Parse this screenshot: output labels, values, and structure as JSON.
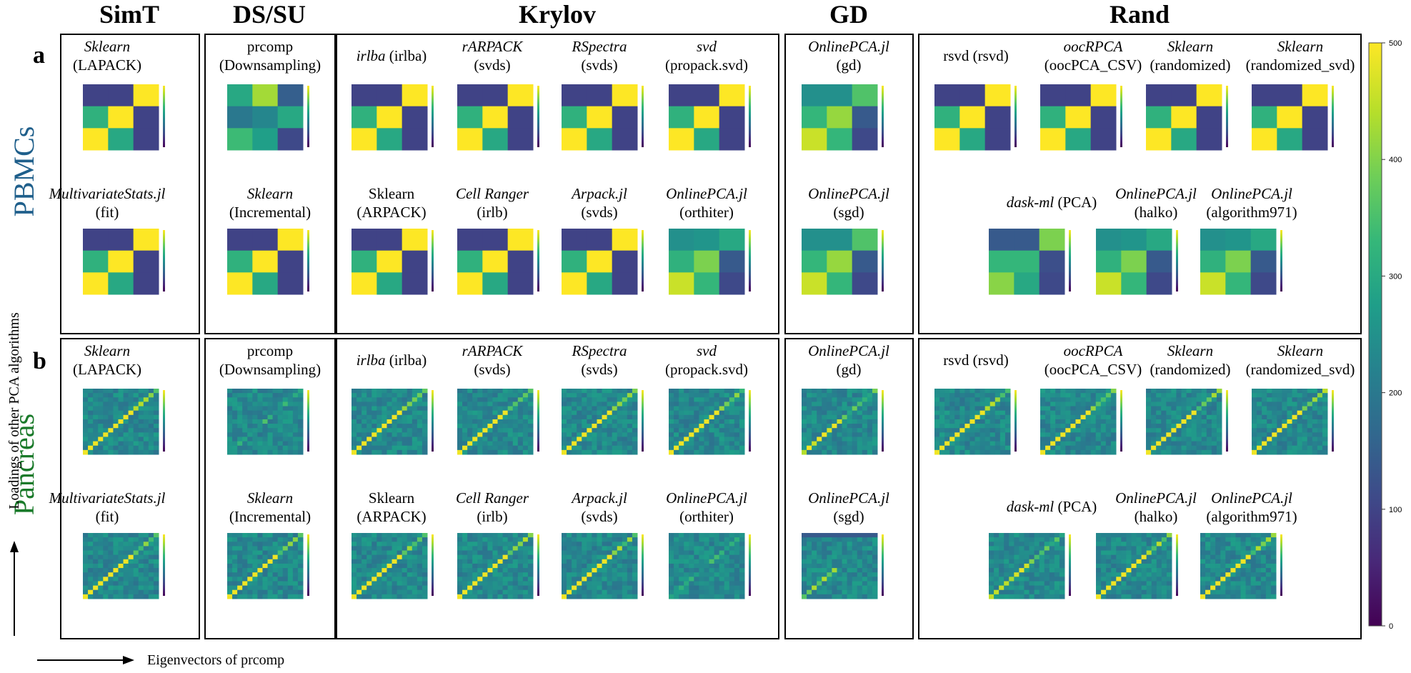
{
  "palette": {
    "viridis": [
      "#440154",
      "#482878",
      "#3e4a89",
      "#31688e",
      "#26828e",
      "#1f9e89",
      "#35b779",
      "#6ece58",
      "#b5de2b",
      "#fde725"
    ],
    "pbmcs_color": "#1f5f8b",
    "pancreas_color": "#1a7a2a"
  },
  "groups": [
    {
      "id": "simt",
      "title": "SimT"
    },
    {
      "id": "dssu",
      "title": "DS/SU"
    },
    {
      "id": "krylov",
      "title": "Krylov"
    },
    {
      "id": "gd",
      "title": "GD"
    },
    {
      "id": "rand",
      "title": "Rand"
    }
  ],
  "rows": [
    {
      "id": "a",
      "letter": "a",
      "dataset": "PBMCs"
    },
    {
      "id": "b",
      "letter": "b",
      "dataset": "Pancreas"
    }
  ],
  "axes": {
    "y_label": "Loadings of other PCA algorithms",
    "x_label": "Eigenvectors of prcomp"
  },
  "colorbar": {
    "ticks": [
      "0",
      "100",
      "200",
      "300",
      "400",
      "500"
    ],
    "range": [
      0,
      500
    ],
    "colormap": "viridis"
  },
  "algorithms": [
    {
      "group": "simt",
      "top": {
        "text": "Sklearn",
        "italic": true
      },
      "bottom": "(LAPACK)"
    },
    {
      "group": "simt",
      "top": {
        "text": "MultivariateStats.jl",
        "italic": true
      },
      "bottom": "(fit)"
    },
    {
      "group": "dssu",
      "top": {
        "text": "prcomp",
        "italic": false
      },
      "bottom": "(Downsampling)"
    },
    {
      "group": "dssu",
      "top": {
        "text": "Sklearn",
        "italic": true
      },
      "bottom": "(Incremental)"
    },
    {
      "group": "krylov",
      "inline": true,
      "top": {
        "text": "irlba",
        "italic": true
      },
      "bottom": " (irlba)"
    },
    {
      "group": "krylov",
      "top": {
        "text": "rARPACK",
        "italic": true
      },
      "bottom": "(svds)"
    },
    {
      "group": "krylov",
      "top": {
        "text": "RSpectra",
        "italic": true
      },
      "bottom": "(svds)"
    },
    {
      "group": "krylov",
      "top": {
        "text": "svd",
        "italic": true
      },
      "bottom": "(propack.svd)"
    },
    {
      "group": "krylov",
      "top": {
        "text": "Sklearn",
        "italic": false
      },
      "bottom": "(ARPACK)"
    },
    {
      "group": "krylov",
      "top": {
        "text": "Cell Ranger",
        "italic": true
      },
      "bottom": "(irlb)"
    },
    {
      "group": "krylov",
      "top": {
        "text": "Arpack.jl",
        "italic": true
      },
      "bottom": "(svds)"
    },
    {
      "group": "krylov",
      "top": {
        "text": "OnlinePCA.jl",
        "italic": true
      },
      "bottom": "(orthiter)"
    },
    {
      "group": "gd",
      "top": {
        "text": "OnlinePCA.jl",
        "italic": true
      },
      "bottom": "(gd)"
    },
    {
      "group": "gd",
      "top": {
        "text": "OnlinePCA.jl",
        "italic": true
      },
      "bottom": "(sgd)"
    },
    {
      "group": "rand",
      "inline": true,
      "top": {
        "text": "rsvd",
        "italic": false
      },
      "bottom": " (rsvd)"
    },
    {
      "group": "rand",
      "top": {
        "text": "oocRPCA",
        "italic": true
      },
      "bottom": "(oocPCA_CSV)"
    },
    {
      "group": "rand",
      "top": {
        "text": "Sklearn",
        "italic": true
      },
      "bottom": "(randomized)"
    },
    {
      "group": "rand",
      "top": {
        "text": "Sklearn",
        "italic": true
      },
      "bottom": "(randomized_svd)"
    },
    {
      "group": "rand",
      "inline": true,
      "top": {
        "text": "dask-ml",
        "italic": true
      },
      "bottom": " (PCA)"
    },
    {
      "group": "rand",
      "top": {
        "text": "OnlinePCA.jl",
        "italic": true
      },
      "bottom": "(halko)"
    },
    {
      "group": "rand",
      "top": {
        "text": "OnlinePCA.jl",
        "italic": true
      },
      "bottom": "(algorithm971)"
    }
  ],
  "chart_data": [
    {
      "type": "heatmap",
      "description_row": "a",
      "dataset": "PBMCs",
      "matrix_size": 3,
      "patterns": {
        "anti_diag": [
          [
            100,
            100,
            500
          ],
          [
            320,
            500,
            100
          ],
          [
            500,
            300,
            100
          ]
        ],
        "weak": [
          [
            300,
            430,
            150
          ],
          [
            200,
            230,
            300
          ],
          [
            340,
            280,
            110
          ]
        ],
        "gd": [
          [
            250,
            250,
            360
          ],
          [
            330,
            420,
            140
          ],
          [
            460,
            330,
            110
          ]
        ],
        "orthiter": [
          [
            250,
            260,
            300
          ],
          [
            320,
            400,
            140
          ],
          [
            460,
            330,
            110
          ]
        ],
        "dask": [
          [
            140,
            140,
            400
          ],
          [
            330,
            330,
            120
          ],
          [
            410,
            300,
            110
          ]
        ]
      }
    },
    {
      "type": "heatmap",
      "description_row": "b",
      "dataset": "Pancreas",
      "matrix_size": 15,
      "patterns": {
        "diag_strong": "bright yellow anti-diagonal on dark blue-green background",
        "diag_weak": "faint green anti-diagonal on blue-green background"
      }
    }
  ]
}
